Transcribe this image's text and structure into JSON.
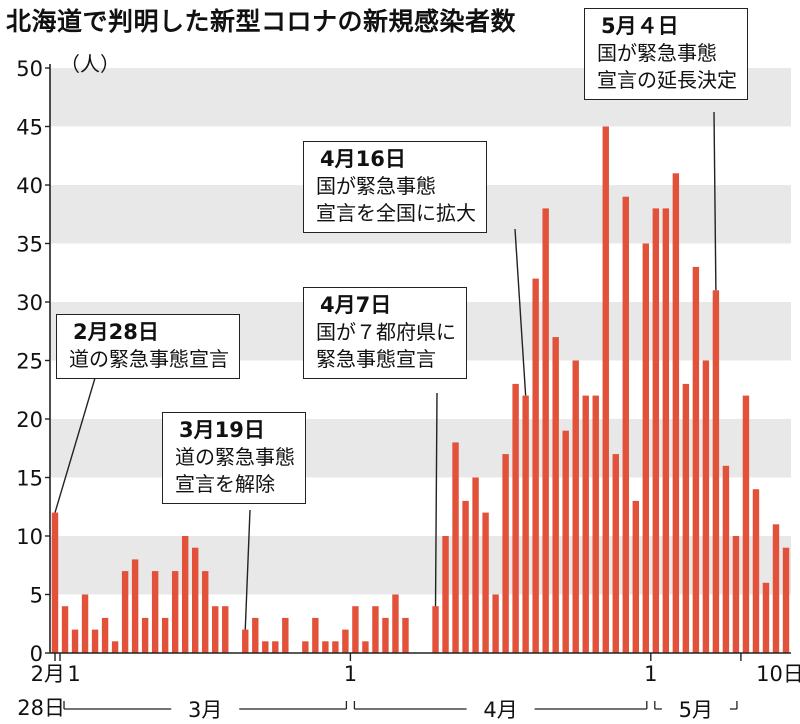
{
  "title": "北海道で判明した新型コロナの新規感染者数",
  "colors": {
    "bar": "#e2523a",
    "band": "#e8e8e8",
    "axis": "#222222"
  },
  "chart_data": {
    "type": "bar",
    "ylabel": "（人）",
    "ylim": [
      0,
      50
    ],
    "yticks": [
      "0",
      "5",
      "10",
      "15",
      "20",
      "25",
      "30",
      "35",
      "40",
      "45",
      "50"
    ],
    "grid": "alternating horizontal bands",
    "xaxis": {
      "date_labels": [
        {
          "index": 0,
          "text": "2月"
        },
        {
          "index": 1,
          "text": "1"
        },
        {
          "index": 30,
          "text": "1"
        },
        {
          "index": 60,
          "text": "1"
        },
        {
          "index": 69,
          "text": "10日"
        }
      ],
      "corner_label": "28日",
      "months": [
        {
          "label": "3月",
          "from": 1,
          "to": 30
        },
        {
          "label": "4月",
          "from": 30,
          "to": 60
        },
        {
          "label": "5月",
          "from": 60,
          "to": 69
        }
      ]
    },
    "values": [
      12,
      4,
      2,
      5,
      2,
      3,
      1,
      7,
      8,
      3,
      7,
      3,
      7,
      10,
      9,
      7,
      4,
      4,
      0,
      2,
      3,
      1,
      1,
      3,
      0,
      1,
      3,
      1,
      1,
      2,
      4,
      1,
      4,
      3,
      5,
      3,
      0,
      0,
      4,
      10,
      18,
      13,
      15,
      12,
      5,
      17,
      23,
      22,
      32,
      38,
      27,
      19,
      25,
      22,
      22,
      45,
      17,
      39,
      13,
      35,
      38,
      38,
      41,
      23,
      33,
      25,
      31,
      16,
      10,
      22,
      14,
      6,
      11,
      9
    ],
    "annotations": [
      {
        "date": "2月28日",
        "lines": [
          "道の緊急事態宣言"
        ],
        "index": 0
      },
      {
        "date": "3月19日",
        "lines": [
          "道の緊急事態",
          "宣言を解除"
        ],
        "index": 19
      },
      {
        "date": "4月7日",
        "lines": [
          "国が７都府県に",
          "緊急事態宣言"
        ],
        "index": 38
      },
      {
        "date": "4月16日",
        "lines": [
          "国が緊急事態",
          "宣言を全国に拡大"
        ],
        "index": 47
      },
      {
        "date": "5月４日",
        "lines": [
          "国が緊急事態",
          "宣言の延長決定"
        ],
        "index": 66
      }
    ]
  }
}
